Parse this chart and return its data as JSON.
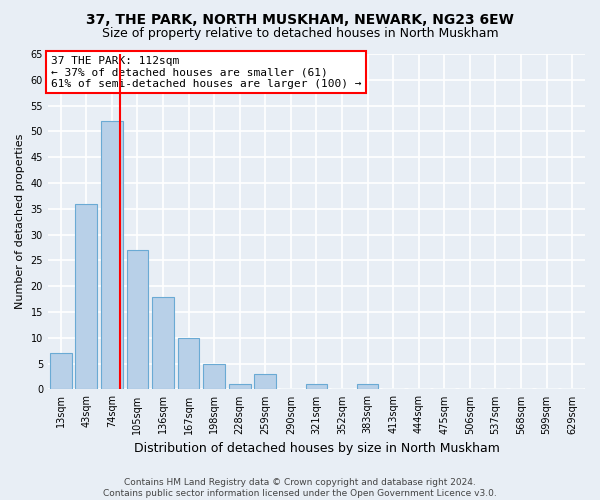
{
  "title1": "37, THE PARK, NORTH MUSKHAM, NEWARK, NG23 6EW",
  "title2": "Size of property relative to detached houses in North Muskham",
  "xlabel": "Distribution of detached houses by size in North Muskham",
  "ylabel": "Number of detached properties",
  "bar_labels": [
    "13sqm",
    "43sqm",
    "74sqm",
    "105sqm",
    "136sqm",
    "167sqm",
    "198sqm",
    "228sqm",
    "259sqm",
    "290sqm",
    "321sqm",
    "352sqm",
    "383sqm",
    "413sqm",
    "444sqm",
    "475sqm",
    "506sqm",
    "537sqm",
    "568sqm",
    "599sqm",
    "629sqm"
  ],
  "bar_values": [
    7,
    36,
    52,
    27,
    18,
    10,
    5,
    1,
    3,
    0,
    1,
    0,
    1,
    0,
    0,
    0,
    0,
    0,
    0,
    0,
    0
  ],
  "bar_color": "#b8d0e8",
  "bar_edge_color": "#6aaad4",
  "vline_color": "red",
  "vline_x": 2.32,
  "ylim": [
    0,
    65
  ],
  "yticks": [
    0,
    5,
    10,
    15,
    20,
    25,
    30,
    35,
    40,
    45,
    50,
    55,
    60,
    65
  ],
  "annotation_title": "37 THE PARK: 112sqm",
  "annotation_line1": "← 37% of detached houses are smaller (61)",
  "annotation_line2": "61% of semi-detached houses are larger (100) →",
  "annotation_box_color": "white",
  "annotation_border_color": "red",
  "footer1": "Contains HM Land Registry data © Crown copyright and database right 2024.",
  "footer2": "Contains public sector information licensed under the Open Government Licence v3.0.",
  "background_color": "#e8eef5",
  "plot_bg_color": "#e8eef5",
  "grid_color": "white",
  "title1_fontsize": 10,
  "title2_fontsize": 9,
  "ylabel_fontsize": 8,
  "xlabel_fontsize": 9,
  "tick_fontsize": 7,
  "footer_fontsize": 6.5,
  "ann_fontsize": 8
}
